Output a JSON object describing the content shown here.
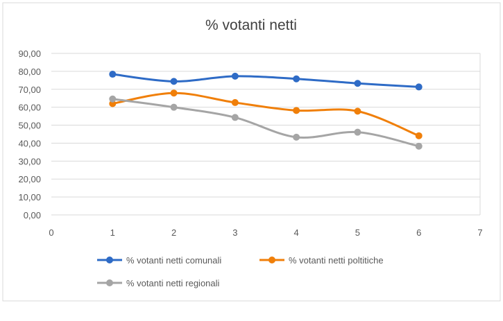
{
  "chart_data": {
    "type": "line",
    "title": "% votanti netti",
    "xlim": [
      0,
      7
    ],
    "ylim": [
      0,
      90
    ],
    "x_ticks": [
      "0",
      "1",
      "2",
      "3",
      "4",
      "5",
      "6",
      "7"
    ],
    "y_ticks": [
      "0,00",
      "10,00",
      "20,00",
      "30,00",
      "40,00",
      "50,00",
      "60,00",
      "70,00",
      "80,00",
      "90,00"
    ],
    "grid": true,
    "smooth": true,
    "legend_position": "bottom",
    "x": [
      1,
      2,
      3,
      4,
      5,
      6
    ],
    "series": [
      {
        "name": "% votanti netti comunali",
        "color": "#2E6BC6",
        "values": [
          78.4,
          74.4,
          77.3,
          75.8,
          73.3,
          71.3
        ]
      },
      {
        "name": "% votanti netti poltitiche",
        "color": "#F07F09",
        "values": [
          62.0,
          67.9,
          62.6,
          58.2,
          57.8,
          44.1
        ]
      },
      {
        "name": "% votanti netti regionali",
        "color": "#A5A5A5",
        "values": [
          64.6,
          60.0,
          54.3,
          43.3,
          46.1,
          38.3
        ]
      }
    ]
  }
}
